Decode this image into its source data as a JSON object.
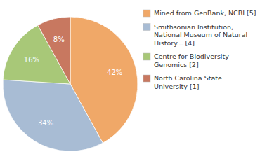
{
  "chart_data": {
    "type": "pie",
    "categories": [
      "Mined from GenBank, NCBI [5]",
      "Smithsonian Institution,\nNational Museum of Natural\nHistory... [4]",
      "Centre for Biodiversity\nGenomics [2]",
      "North Carolina State\nUniversity [1]"
    ],
    "values": [
      42,
      34,
      16,
      8
    ],
    "value_labels": [
      "42%",
      "34%",
      "16%",
      "8%"
    ],
    "colors": [
      "#f0a868",
      "#a8bcd4",
      "#a8c878",
      "#c87860"
    ],
    "data_labels": true,
    "legend": "right"
  }
}
